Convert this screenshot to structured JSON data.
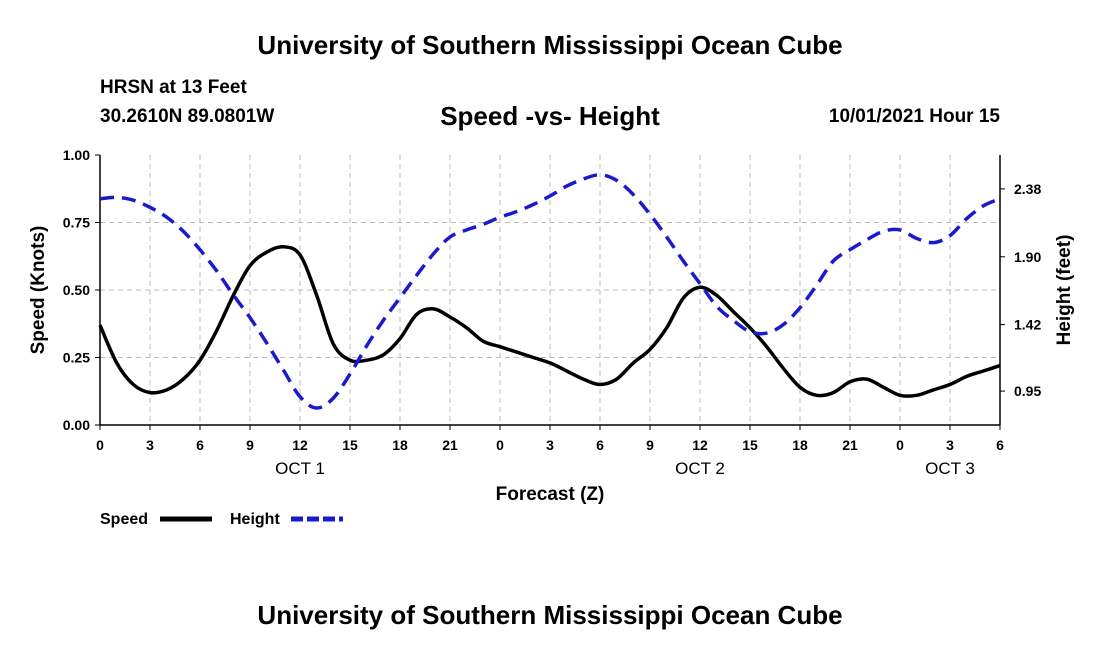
{
  "header": {
    "title": "University of Southern Mississippi Ocean Cube",
    "station": "HRSN at 13 Feet",
    "coords": "30.2610N  89.0801W",
    "chart_title": "Speed -vs- Height",
    "datetime": "10/01/2021 Hour 15"
  },
  "footer": {
    "title": "University of Southern Mississippi Ocean Cube"
  },
  "chart_data": {
    "type": "line",
    "title": "Speed -vs- Height",
    "xlabel": "Forecast (Z)",
    "ylabel": "Speed (Knots)",
    "y2label": "Height (feet)",
    "x_range": [
      0,
      54
    ],
    "ylim": [
      0,
      1.0
    ],
    "y2lim": [
      0.71,
      2.62
    ],
    "x_ticks": [
      0,
      3,
      6,
      9,
      12,
      15,
      18,
      21,
      24,
      27,
      30,
      33,
      36,
      39,
      42,
      45,
      48,
      51,
      54
    ],
    "x_tick_labels": [
      "0",
      "3",
      "6",
      "9",
      "12",
      "15",
      "18",
      "21",
      "0",
      "3",
      "6",
      "9",
      "12",
      "15",
      "18",
      "21",
      "0",
      "3",
      "6"
    ],
    "day_labels": [
      {
        "x": 12,
        "label": "OCT 1"
      },
      {
        "x": 36,
        "label": "OCT 2"
      },
      {
        "x": 51,
        "label": "OCT 3"
      }
    ],
    "y_ticks": [
      "0.00",
      "0.25",
      "0.50",
      "0.75",
      "1.00"
    ],
    "y2_ticks": [
      "0.95",
      "1.42",
      "1.90",
      "2.38"
    ],
    "grid": true,
    "legend": [
      {
        "name": "Speed",
        "color": "#000000",
        "style": "solid"
      },
      {
        "name": "Height",
        "color": "#1a1acc",
        "style": "dashed"
      }
    ],
    "series": [
      {
        "name": "Speed",
        "axis": "left",
        "color": "#000000",
        "x": [
          0,
          1,
          2,
          3,
          4,
          5,
          6,
          7,
          8,
          9,
          10,
          11,
          12,
          13,
          14,
          15,
          16,
          17,
          18,
          19,
          20,
          21,
          22,
          23,
          24,
          25,
          26,
          27,
          28,
          29,
          30,
          31,
          32,
          33,
          34,
          35,
          36,
          37,
          38,
          39,
          40,
          41,
          42,
          43,
          44,
          45,
          46,
          47,
          48,
          49,
          50,
          51,
          52,
          53,
          54
        ],
        "values": [
          0.37,
          0.23,
          0.15,
          0.12,
          0.13,
          0.17,
          0.24,
          0.35,
          0.48,
          0.59,
          0.64,
          0.66,
          0.63,
          0.48,
          0.3,
          0.24,
          0.24,
          0.26,
          0.32,
          0.41,
          0.43,
          0.4,
          0.36,
          0.31,
          0.29,
          0.27,
          0.25,
          0.23,
          0.2,
          0.17,
          0.15,
          0.17,
          0.23,
          0.28,
          0.36,
          0.47,
          0.51,
          0.48,
          0.42,
          0.36,
          0.29,
          0.21,
          0.14,
          0.11,
          0.12,
          0.16,
          0.17,
          0.14,
          0.11,
          0.11,
          0.13,
          0.15,
          0.18,
          0.2,
          0.22
        ]
      },
      {
        "name": "Height",
        "axis": "right",
        "color": "#1a1acc",
        "x": [
          0,
          1,
          2,
          3,
          4,
          5,
          6,
          7,
          8,
          9,
          10,
          11,
          12,
          13,
          14,
          15,
          16,
          17,
          18,
          19,
          20,
          21,
          22,
          23,
          24,
          25,
          26,
          27,
          28,
          29,
          30,
          31,
          32,
          33,
          34,
          35,
          36,
          37,
          38,
          39,
          40,
          41,
          42,
          43,
          44,
          45,
          46,
          47,
          48,
          49,
          50,
          51,
          52,
          53,
          54
        ],
        "values": [
          2.31,
          2.32,
          2.3,
          2.25,
          2.18,
          2.08,
          1.95,
          1.8,
          1.63,
          1.47,
          1.29,
          1.1,
          0.91,
          0.83,
          0.9,
          1.07,
          1.27,
          1.45,
          1.61,
          1.77,
          1.92,
          2.04,
          2.09,
          2.13,
          2.18,
          2.22,
          2.27,
          2.33,
          2.4,
          2.45,
          2.48,
          2.44,
          2.34,
          2.2,
          2.04,
          1.87,
          1.71,
          1.55,
          1.45,
          1.37,
          1.36,
          1.42,
          1.54,
          1.7,
          1.87,
          1.95,
          2.02,
          2.08,
          2.09,
          2.03,
          2.0,
          2.05,
          2.17,
          2.26,
          2.31
        ]
      }
    ]
  }
}
